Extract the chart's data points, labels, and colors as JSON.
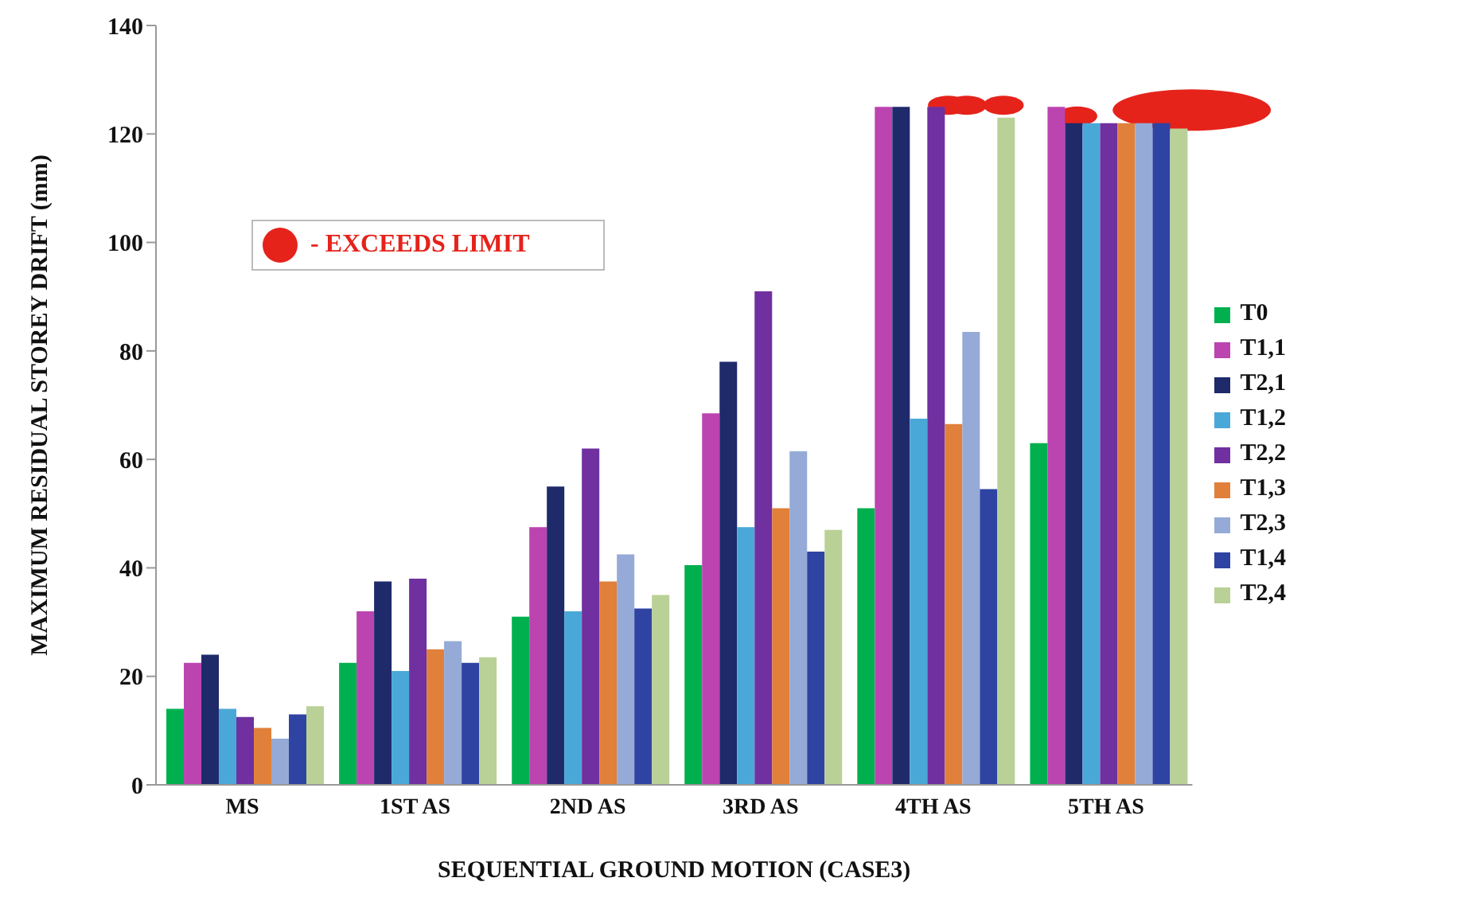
{
  "chart_data": {
    "type": "bar",
    "xlabel": "SEQUENTIAL GROUND MOTION (CASE3)",
    "ylabel": "MAXIMUM RESIDUAL STOREY DRIFT (mm)",
    "categories": [
      "MS",
      "1ST AS",
      "2ND AS",
      "3RD AS",
      "4TH AS",
      "5TH AS"
    ],
    "series": [
      {
        "name": "T0",
        "color": "#00b04f",
        "values": [
          14,
          22.5,
          31,
          40.5,
          51,
          63
        ]
      },
      {
        "name": "T1,1",
        "color": "#bb44b0",
        "values": [
          22.5,
          32,
          47.5,
          68.5,
          125,
          125
        ]
      },
      {
        "name": "T2,1",
        "color": "#1f2a6b",
        "values": [
          24,
          37.5,
          55,
          78,
          125,
          122
        ]
      },
      {
        "name": "T1,2",
        "color": "#4aa8d8",
        "values": [
          14,
          21,
          32,
          47.5,
          67.5,
          122
        ]
      },
      {
        "name": "T2,2",
        "color": "#7030a0",
        "values": [
          12.5,
          38,
          62,
          91,
          125,
          122
        ]
      },
      {
        "name": "T1,3",
        "color": "#e0803a",
        "values": [
          10.5,
          25,
          37.5,
          51,
          66.5,
          122
        ]
      },
      {
        "name": "T2,3",
        "color": "#95aad6",
        "values": [
          8.5,
          26.5,
          42.5,
          61.5,
          83.5,
          122
        ]
      },
      {
        "name": "T1,4",
        "color": "#2f43a3",
        "values": [
          13,
          22.5,
          32.5,
          43,
          54.5,
          122
        ]
      },
      {
        "name": "T2,4",
        "color": "#b9d196",
        "values": [
          14.5,
          23.5,
          35,
          47,
          123,
          121
        ]
      }
    ],
    "ylim": [
      0,
      140
    ],
    "yticks": [
      0,
      20,
      40,
      60,
      80,
      100,
      120,
      140
    ],
    "grid": false,
    "legend": "right",
    "annotations": [
      "- EXCEEDS LIMIT"
    ]
  }
}
